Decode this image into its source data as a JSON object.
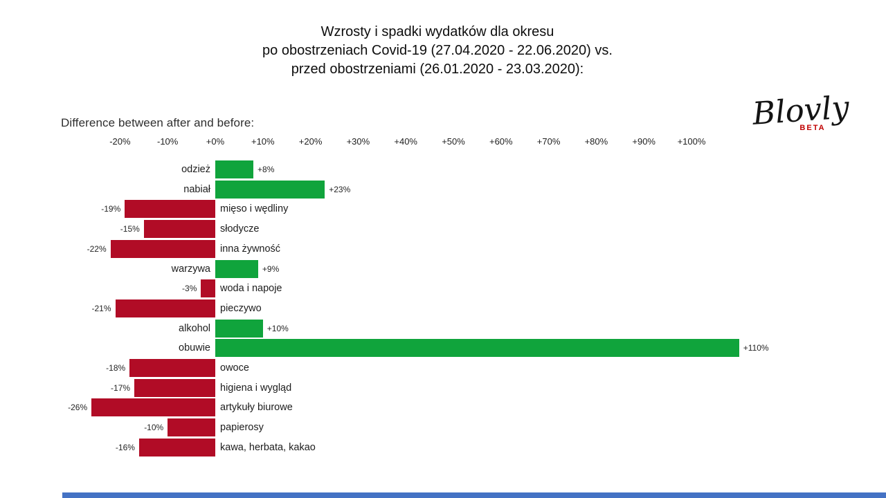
{
  "slide": {
    "title_lines": [
      "Wzrosty i spadki wydatków dla okresu",
      "po obostrzeniach Covid-19 (27.04.2020 - 22.06.2020) vs.",
      "przed obostrzeniami (26.01.2020 - 23.03.2020):"
    ],
    "logo": {
      "brand": "Blovly",
      "badge": "BETA",
      "badge_color": "#C00000"
    },
    "footer_bar_color": "#4472C4"
  },
  "chart_data": {
    "type": "bar",
    "orientation": "horizontal",
    "title": "Wzrosty i spadki wydatków dla okresu po obostrzeniach Covid-19 (27.04.2020 - 22.06.2020) vs. przed obostrzeniami (26.01.2020 - 23.03.2020):",
    "axis_label": "Difference between after and before:",
    "x_ticks": [
      "-20%",
      "-10%",
      "+0%",
      "+10%",
      "+20%",
      "+30%",
      "+40%",
      "+50%",
      "+60%",
      "+70%",
      "+80%",
      "+90%",
      "+100%"
    ],
    "x_tick_values": [
      -20,
      -10,
      0,
      10,
      20,
      30,
      40,
      50,
      60,
      70,
      80,
      90,
      100
    ],
    "xlim": [
      -30,
      115
    ],
    "grid": false,
    "legend": false,
    "categories": [
      "odzież",
      "nabiał",
      "mięso i wędliny",
      "słodycze",
      "inna żywność",
      "warzywa",
      "woda i napoje",
      "pieczywo",
      "alkohol",
      "obuwie",
      "owoce",
      "higiena i wygląd",
      "artykuły biurowe",
      "papierosy",
      "kawa, herbata, kakao"
    ],
    "values": [
      8,
      23,
      -19,
      -15,
      -22,
      9,
      -3,
      -21,
      10,
      110,
      -18,
      -17,
      -26,
      -10,
      -16
    ],
    "value_labels": [
      "+8%",
      "+23%",
      "-19%",
      "-15%",
      "-22%",
      "+9%",
      "-3%",
      "-21%",
      "+10%",
      "+110%",
      "-18%",
      "-17%",
      "-26%",
      "-10%",
      "-16%"
    ],
    "positive_color": "#10A43C",
    "negative_color": "#B10C26"
  }
}
